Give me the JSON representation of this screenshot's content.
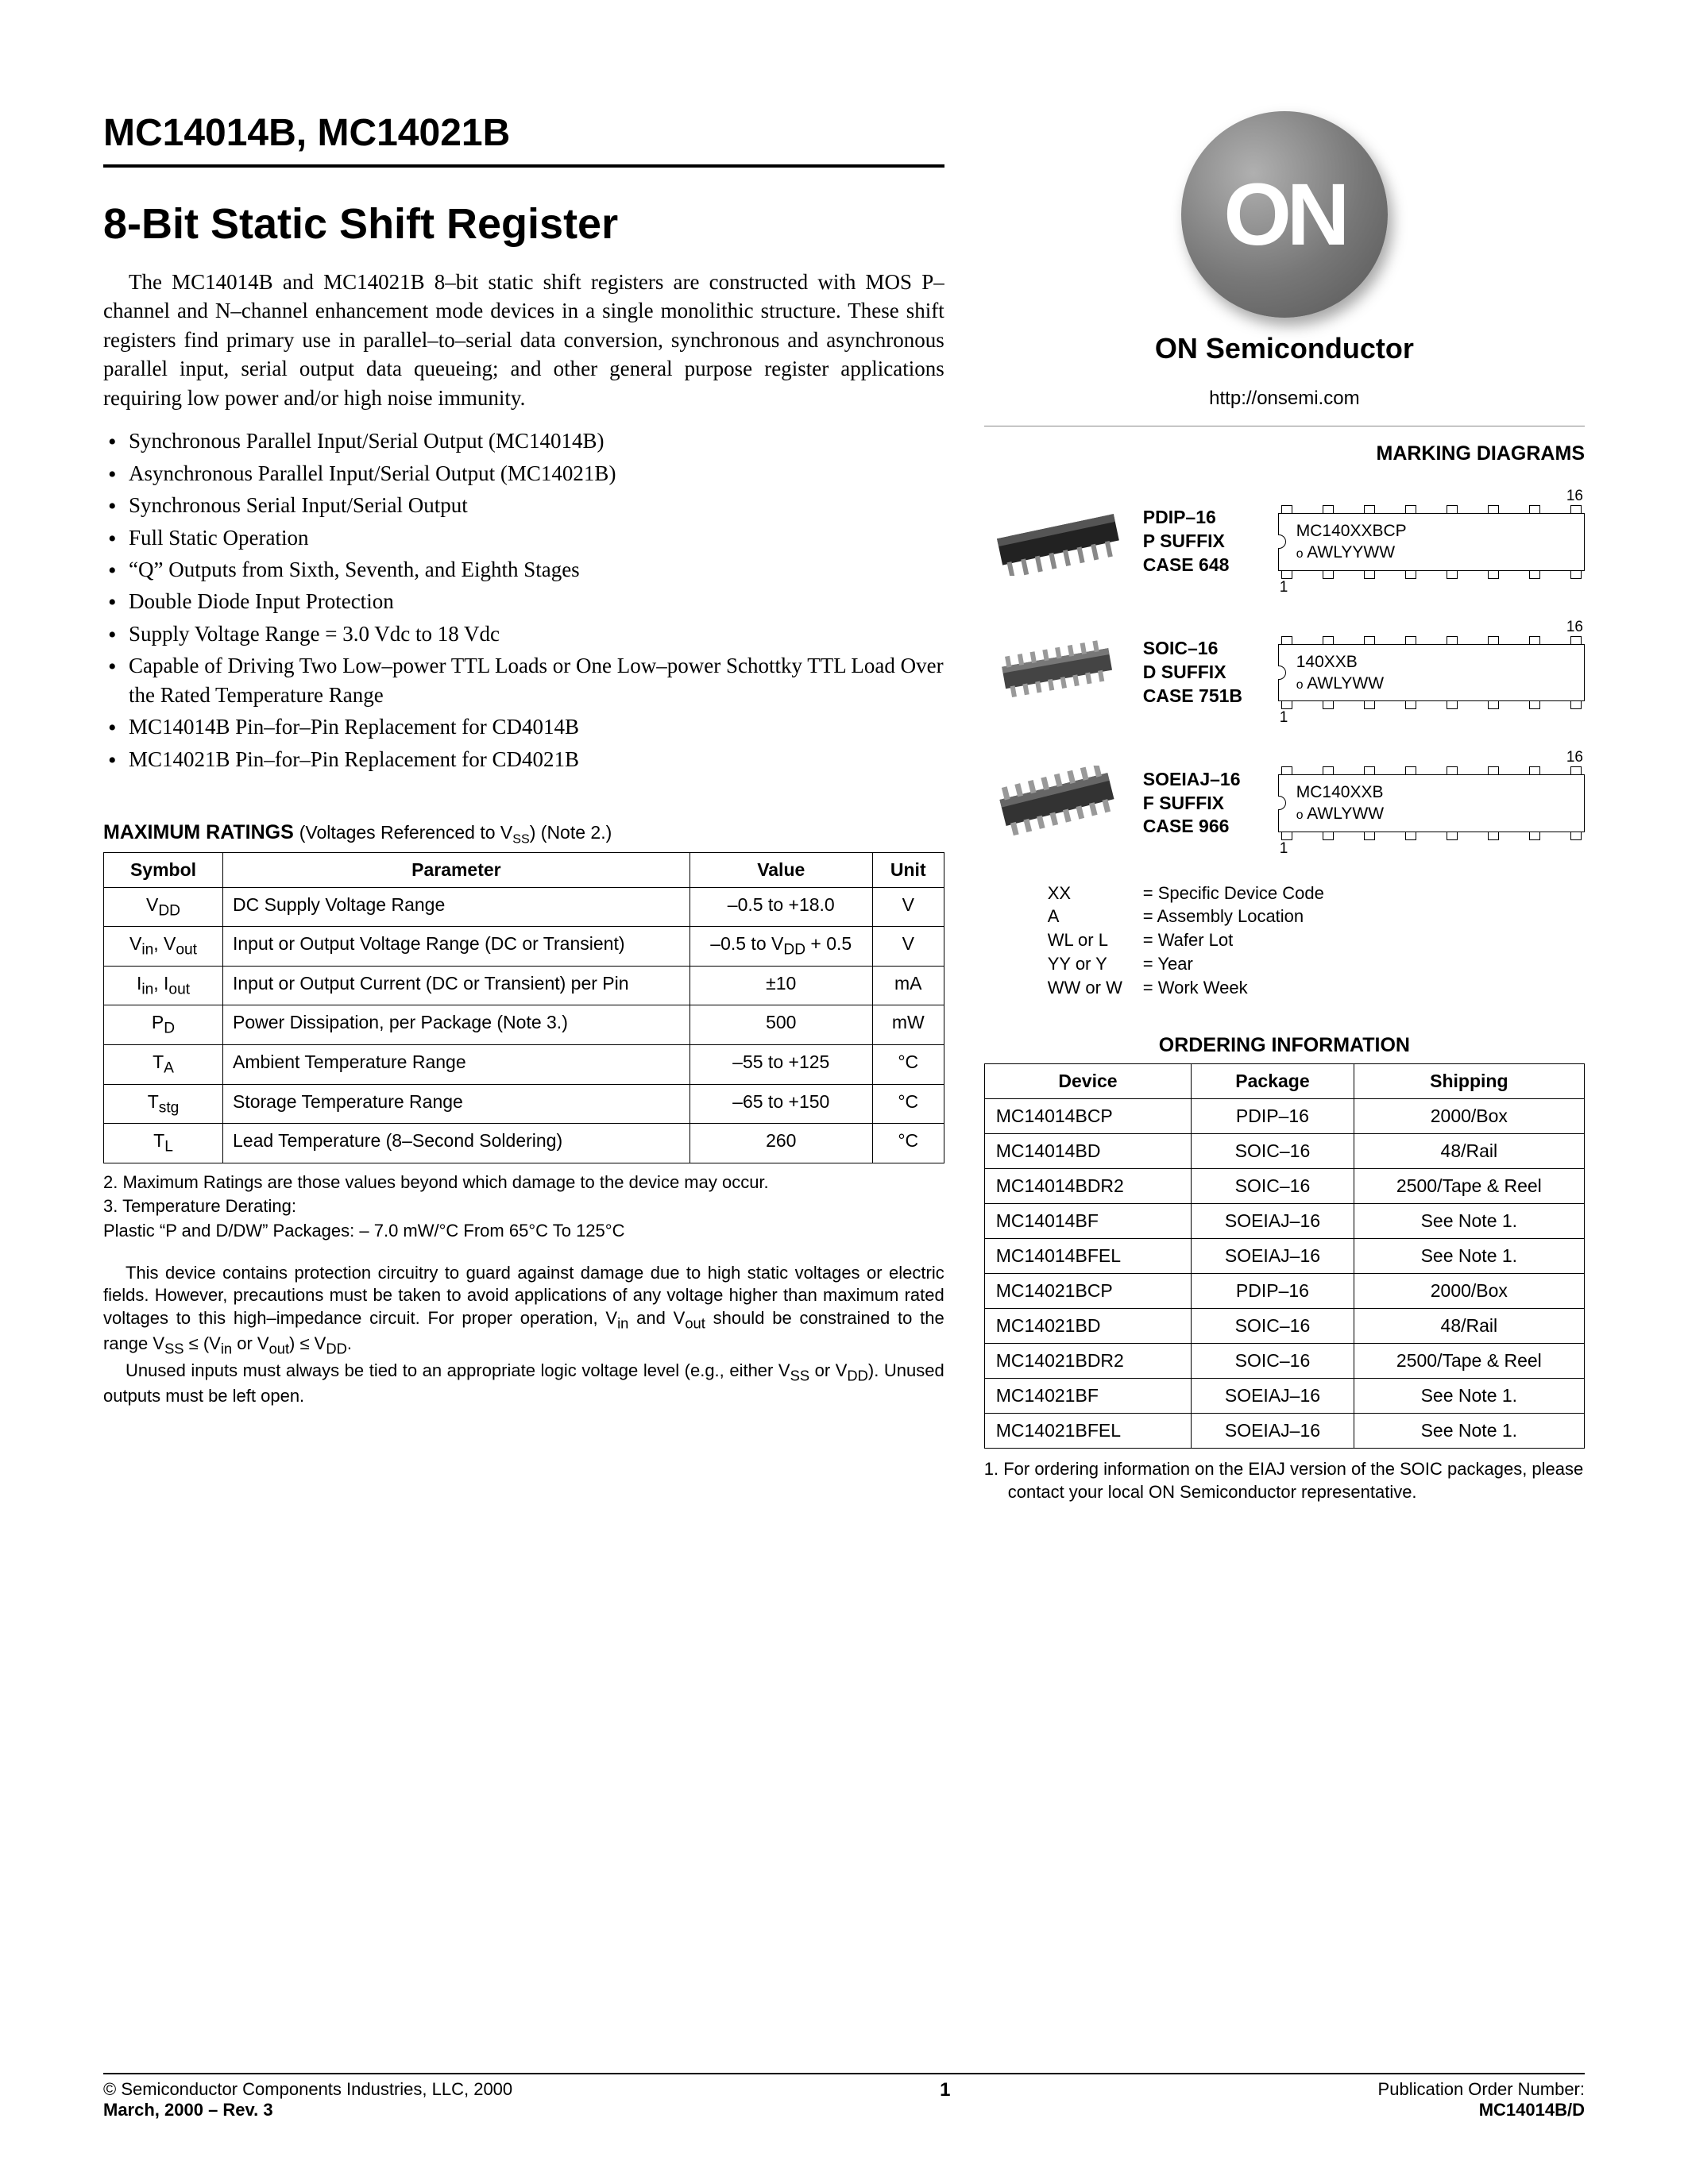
{
  "header": {
    "part_numbers": "MC14014B, MC14021B",
    "title": "8-Bit Static Shift Register"
  },
  "intro": "The MC14014B and MC14021B 8–bit static shift registers are constructed with MOS P–channel and N–channel enhancement mode devices in a single monolithic structure. These shift registers find primary use in parallel–to–serial data conversion, synchronous and asynchronous parallel input, serial output data queueing; and other general purpose register applications requiring low power and/or high noise immunity.",
  "features": [
    "Synchronous Parallel Input/Serial Output (MC14014B)",
    "Asynchronous Parallel Input/Serial Output (MC14021B)",
    "Synchronous Serial Input/Serial Output",
    "Full Static Operation",
    "“Q” Outputs from Sixth, Seventh, and Eighth Stages",
    "Double Diode Input Protection",
    "Supply Voltage Range = 3.0 Vdc to 18 Vdc",
    "Capable of Driving Two Low–power TTL Loads or One Low–power Schottky TTL Load Over the Rated Temperature Range",
    "MC14014B Pin–for–Pin Replacement for CD4014B",
    "MC14021B Pin–for–Pin Replacement for CD4021B"
  ],
  "ratings": {
    "title": "MAXIMUM RATINGS",
    "subtitle": "(Voltages Referenced to V",
    "subtitle_sub": "SS",
    "subtitle_after": ") (Note 2.)",
    "columns": [
      "Symbol",
      "Parameter",
      "Value",
      "Unit"
    ],
    "rows": [
      {
        "symbol_html": "V<sub>DD</sub>",
        "parameter": "DC Supply Voltage Range",
        "value": "–0.5 to +18.0",
        "unit": "V"
      },
      {
        "symbol_html": "V<sub>in</sub>, V<sub>out</sub>",
        "parameter": "Input or Output Voltage Range (DC or Transient)",
        "value_html": "–0.5 to V<sub>DD</sub> + 0.5",
        "unit": "V"
      },
      {
        "symbol_html": "I<sub>in</sub>, I<sub>out</sub>",
        "parameter": "Input or Output Current (DC or Transient) per Pin",
        "value": "±10",
        "unit": "mA"
      },
      {
        "symbol_html": "P<sub>D</sub>",
        "parameter": "Power Dissipation, per Package (Note 3.)",
        "value": "500",
        "unit": "mW"
      },
      {
        "symbol_html": "T<sub>A</sub>",
        "parameter": "Ambient Temperature Range",
        "value": "–55 to +125",
        "unit": "°C"
      },
      {
        "symbol_html": "T<sub>stg</sub>",
        "parameter": "Storage Temperature Range",
        "value": "–65 to +150",
        "unit": "°C"
      },
      {
        "symbol_html": "T<sub>L</sub>",
        "parameter": "Lead Temperature (8–Second Soldering)",
        "value": "260",
        "unit": "°C"
      }
    ]
  },
  "footnotes": [
    "2.  Maximum Ratings are those values beyond which damage to the device may occur.",
    "3.  Temperature Derating:",
    "     Plastic “P and D/DW” Packages: – 7.0 mW/°C From 65°C To 125°C"
  ],
  "warning_paragraphs": [
    "This device contains protection circuitry to guard against damage due to high static voltages or electric fields. However, precautions must be taken to avoid applications of any voltage higher than maximum rated voltages to this high–impedance circuit. For proper operation, V<sub>in</sub> and V<sub>out</sub> should be constrained to the range V<sub>SS</sub> ≤ (V<sub>in</sub> or V<sub>out</sub>) ≤ V<sub>DD</sub>.",
    "Unused inputs must always be tied to an appropriate logic voltage level (e.g., either V<sub>SS</sub> or V<sub>DD</sub>). Unused outputs must be left open."
  ],
  "company": {
    "logo_text": "ON",
    "name": "ON Semiconductor",
    "url": "http://onsemi.com"
  },
  "marking": {
    "title": "MARKING DIAGRAMS",
    "packages": [
      {
        "name": "PDIP–16",
        "suffix": "P SUFFIX",
        "case": "CASE 648",
        "line1": "MC140XXBCP",
        "line2": "AWLYYWW",
        "pin_hi": "16",
        "pin_lo": "1"
      },
      {
        "name": "SOIC–16",
        "suffix": "D SUFFIX",
        "case": "CASE 751B",
        "line1": "140XXB",
        "line2": "AWLYWW",
        "pin_hi": "16",
        "pin_lo": "1"
      },
      {
        "name": "SOEIAJ–16",
        "suffix": "F SUFFIX",
        "case": "CASE 966",
        "line1": "MC140XXB",
        "line2": "AWLYWW",
        "pin_hi": "16",
        "pin_lo": "1"
      }
    ],
    "legend": [
      {
        "k": "XX",
        "v": "= Specific Device Code"
      },
      {
        "k": "A",
        "v": "= Assembly Location"
      },
      {
        "k": "WL or L",
        "v": "= Wafer Lot"
      },
      {
        "k": "YY or Y",
        "v": "= Year"
      },
      {
        "k": "WW or W",
        "v": "= Work Week"
      }
    ]
  },
  "ordering": {
    "title": "ORDERING INFORMATION",
    "columns": [
      "Device",
      "Package",
      "Shipping"
    ],
    "rows": [
      [
        "MC14014BCP",
        "PDIP–16",
        "2000/Box"
      ],
      [
        "MC14014BD",
        "SOIC–16",
        "48/Rail"
      ],
      [
        "MC14014BDR2",
        "SOIC–16",
        "2500/Tape & Reel"
      ],
      [
        "MC14014BF",
        "SOEIAJ–16",
        "See Note 1."
      ],
      [
        "MC14014BFEL",
        "SOEIAJ–16",
        "See Note 1."
      ],
      [
        "MC14021BCP",
        "PDIP–16",
        "2000/Box"
      ],
      [
        "MC14021BD",
        "SOIC–16",
        "48/Rail"
      ],
      [
        "MC14021BDR2",
        "SOIC–16",
        "2500/Tape & Reel"
      ],
      [
        "MC14021BF",
        "SOEIAJ–16",
        "See Note 1."
      ],
      [
        "MC14021BFEL",
        "SOEIAJ–16",
        "See Note 1."
      ]
    ],
    "note": "1.  For ordering information on the EIAJ version of the SOIC packages, please contact your local ON Semiconductor representative."
  },
  "footer": {
    "copyright": "©  Semiconductor Components Industries, LLC, 2000",
    "date_rev": "March, 2000 – Rev. 3",
    "page": "1",
    "pub_label": "Publication Order Number:",
    "pub_number": "MC14014B/D"
  },
  "style": {
    "background_color": "#ffffff",
    "text_color": "#000000",
    "rule_color": "#000000",
    "body_font": "Times New Roman",
    "sans_font": "Arial",
    "part_number_fontsize": 48,
    "title_fontsize": 54,
    "body_fontsize": 27,
    "table_fontsize": 23,
    "footnote_fontsize": 22
  }
}
